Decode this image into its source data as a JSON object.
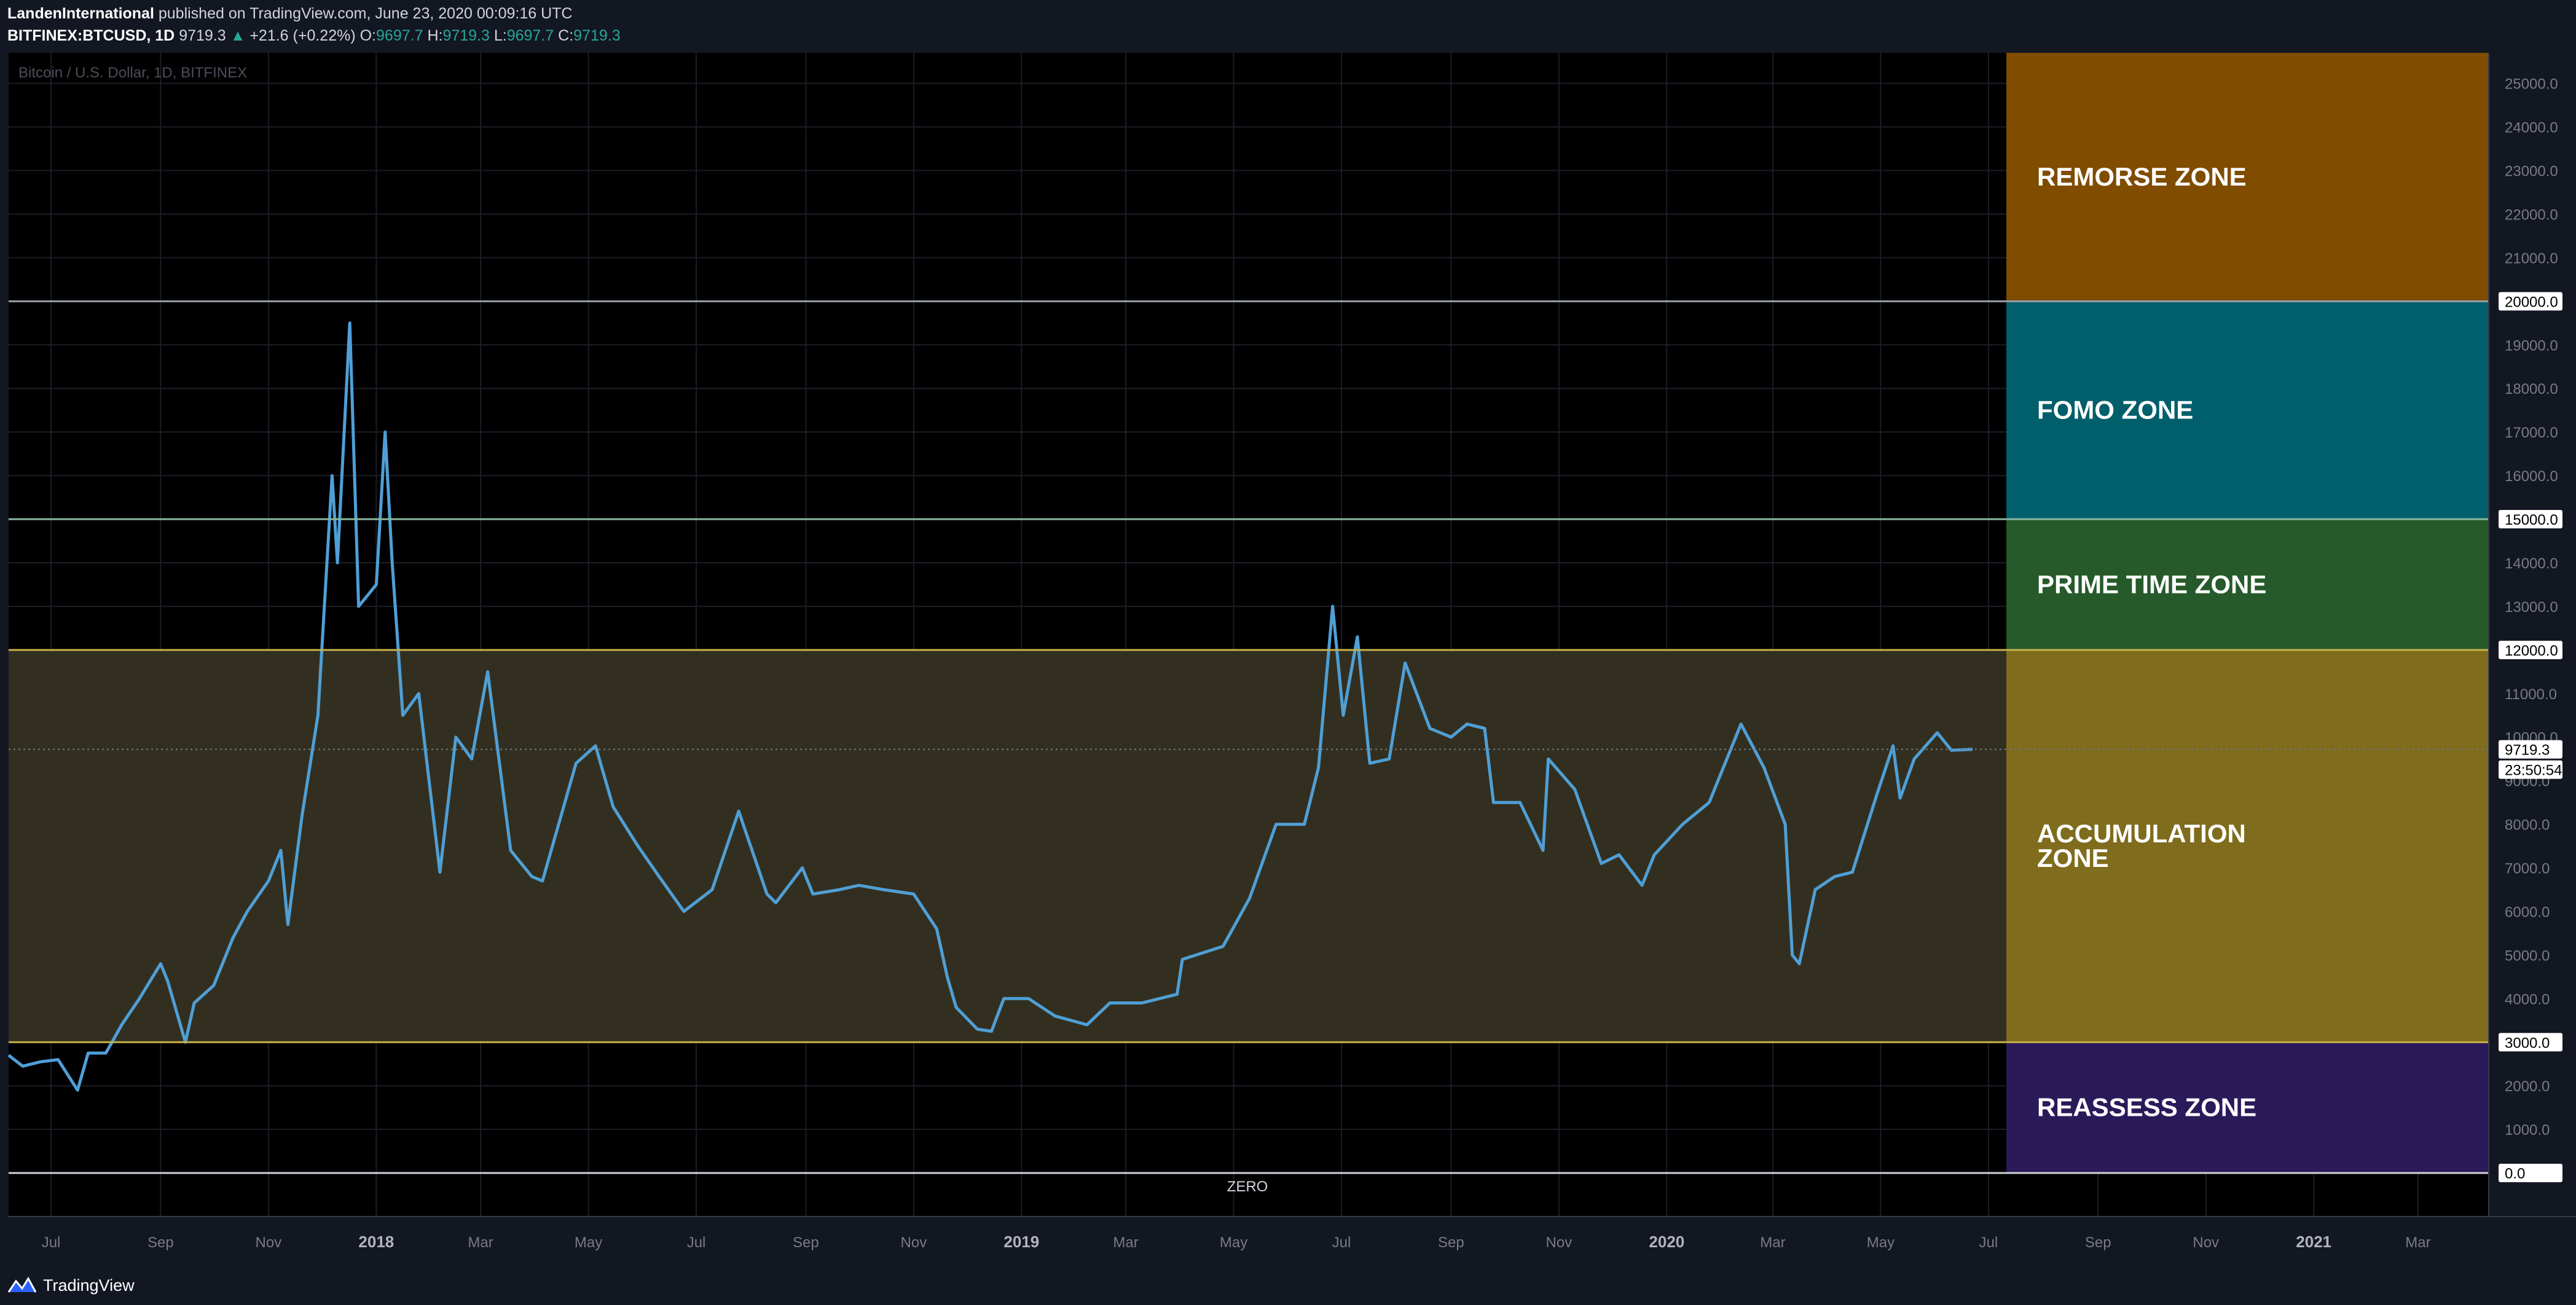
{
  "header": {
    "publisher": "LandenInternational",
    "published_text": "published on TradingView.com, June 23, 2020 00:09:16 UTC",
    "symbol": "BITFINEX:BTCUSD, 1D",
    "last": "9719.3",
    "change": "+21.6 (+0.22%)",
    "o_label": "O:",
    "o_value": "9697.7",
    "h_label": "H:",
    "h_value": "9719.3",
    "l_label": "L:",
    "l_value": "9697.7",
    "c_label": "C:",
    "c_value": "9719.3"
  },
  "footer": {
    "brand": "TradingView",
    "logo_icon": "tradingview-logo-icon"
  },
  "colors": {
    "background": "#000000",
    "price_line": "#4f9fd6",
    "remorse": "#7f4c00",
    "fomo": "#005f6b",
    "prime": "#265a2a",
    "accumulation": "#7f6c1c",
    "accumulation_band": "#332f20",
    "reassess": "#2b1a5a"
  },
  "chart_data": {
    "type": "line",
    "title": "Bitcoin / U.S. Dollar, 1D, BITFINEX",
    "ylim": [
      -1000,
      25700
    ],
    "grid": true,
    "y_ticks": [
      "0.0",
      "1000.0",
      "2000.0",
      "3000.0",
      "4000.0",
      "5000.0",
      "6000.0",
      "7000.0",
      "8000.0",
      "9000.0",
      "10000.0",
      "11000.0",
      "12000.0",
      "13000.0",
      "14000.0",
      "15000.0",
      "16000.0",
      "17000.0",
      "18000.0",
      "19000.0",
      "20000.0",
      "21000.0",
      "22000.0",
      "23000.0",
      "24000.0",
      "25000.0"
    ],
    "highlighted_levels": [
      "0.0",
      "3000.0",
      "12000.0",
      "15000.0",
      "20000.0"
    ],
    "last_price_label": "9719.3",
    "countdown_label": "23:50:54",
    "x_labels": [
      {
        "label": "Jul",
        "date": "2017-07-01",
        "bold": false
      },
      {
        "label": "Sep",
        "date": "2017-09-01",
        "bold": false
      },
      {
        "label": "Nov",
        "date": "2017-11-01",
        "bold": false
      },
      {
        "label": "2018",
        "date": "2018-01-01",
        "bold": true
      },
      {
        "label": "Mar",
        "date": "2018-03-01",
        "bold": false
      },
      {
        "label": "May",
        "date": "2018-05-01",
        "bold": false
      },
      {
        "label": "Jul",
        "date": "2018-07-01",
        "bold": false
      },
      {
        "label": "Sep",
        "date": "2018-09-01",
        "bold": false
      },
      {
        "label": "Nov",
        "date": "2018-11-01",
        "bold": false
      },
      {
        "label": "2019",
        "date": "2019-01-01",
        "bold": true
      },
      {
        "label": "Mar",
        "date": "2019-03-01",
        "bold": false
      },
      {
        "label": "May",
        "date": "2019-05-01",
        "bold": false
      },
      {
        "label": "Jul",
        "date": "2019-07-01",
        "bold": false
      },
      {
        "label": "Sep",
        "date": "2019-09-01",
        "bold": false
      },
      {
        "label": "Nov",
        "date": "2019-11-01",
        "bold": false
      },
      {
        "label": "2020",
        "date": "2020-01-01",
        "bold": true
      },
      {
        "label": "Mar",
        "date": "2020-03-01",
        "bold": false
      },
      {
        "label": "May",
        "date": "2020-05-01",
        "bold": false
      },
      {
        "label": "Jul",
        "date": "2020-07-01",
        "bold": false
      },
      {
        "label": "Sep",
        "date": "2020-09-01",
        "bold": false
      },
      {
        "label": "Nov",
        "date": "2020-11-01",
        "bold": false
      },
      {
        "label": "2021",
        "date": "2021-01-01",
        "bold": true
      },
      {
        "label": "Mar",
        "date": "2021-03-01",
        "bold": false
      }
    ],
    "xlim": [
      "2017-06-07",
      "2021-04-10"
    ],
    "zones": [
      {
        "name": "REMORSE ZONE",
        "from": 20000,
        "to": 25700,
        "color": "#7f4c00"
      },
      {
        "name": "FOMO ZONE",
        "from": 15000,
        "to": 20000,
        "color": "#005f6b"
      },
      {
        "name": "PRIME TIME ZONE",
        "from": 12000,
        "to": 15000,
        "color": "#265a2a"
      },
      {
        "name": "ACCUMULATION ZONE",
        "from": 3000,
        "to": 12000,
        "color": "#7f6c1c"
      },
      {
        "name": "REASSESS ZONE",
        "from": 0,
        "to": 3000,
        "color": "#2b1a5a"
      }
    ],
    "zone_label_lines": {
      "REMORSE ZONE": [
        "REMORSE ZONE"
      ],
      "FOMO ZONE": [
        "FOMO ZONE"
      ],
      "PRIME TIME ZONE": [
        "PRIME TIME ZONE"
      ],
      "ACCUMULATION ZONE": [
        "ACCUMULATION",
        "ZONE"
      ],
      "REASSESS ZONE": [
        "REASSESS ZONE"
      ]
    },
    "annotation": "ZERO",
    "series": [
      {
        "values": [
          [
            "2017-06-07",
            2700
          ],
          [
            "2017-06-15",
            2450
          ],
          [
            "2017-06-25",
            2550
          ],
          [
            "2017-07-05",
            2600
          ],
          [
            "2017-07-16",
            1900
          ],
          [
            "2017-07-22",
            2750
          ],
          [
            "2017-08-01",
            2750
          ],
          [
            "2017-08-10",
            3400
          ],
          [
            "2017-08-20",
            4000
          ],
          [
            "2017-09-01",
            4800
          ],
          [
            "2017-09-05",
            4400
          ],
          [
            "2017-09-15",
            3000
          ],
          [
            "2017-09-20",
            3900
          ],
          [
            "2017-10-01",
            4300
          ],
          [
            "2017-10-12",
            5400
          ],
          [
            "2017-10-20",
            6000
          ],
          [
            "2017-11-01",
            6700
          ],
          [
            "2017-11-08",
            7400
          ],
          [
            "2017-11-12",
            5700
          ],
          [
            "2017-11-20",
            8200
          ],
          [
            "2017-11-29",
            10500
          ],
          [
            "2017-12-07",
            16000
          ],
          [
            "2017-12-10",
            14000
          ],
          [
            "2017-12-17",
            19500
          ],
          [
            "2017-12-22",
            13000
          ],
          [
            "2018-01-01",
            13500
          ],
          [
            "2018-01-06",
            17000
          ],
          [
            "2018-01-10",
            14000
          ],
          [
            "2018-01-16",
            10500
          ],
          [
            "2018-01-25",
            11000
          ],
          [
            "2018-02-06",
            6900
          ],
          [
            "2018-02-15",
            10000
          ],
          [
            "2018-02-24",
            9500
          ],
          [
            "2018-03-05",
            11500
          ],
          [
            "2018-03-18",
            7400
          ],
          [
            "2018-03-30",
            6800
          ],
          [
            "2018-04-05",
            6700
          ],
          [
            "2018-04-24",
            9400
          ],
          [
            "2018-05-05",
            9800
          ],
          [
            "2018-05-15",
            8400
          ],
          [
            "2018-05-29",
            7500
          ],
          [
            "2018-06-10",
            6800
          ],
          [
            "2018-06-24",
            6000
          ],
          [
            "2018-07-10",
            6500
          ],
          [
            "2018-07-25",
            8300
          ],
          [
            "2018-08-10",
            6400
          ],
          [
            "2018-08-15",
            6200
          ],
          [
            "2018-08-30",
            7000
          ],
          [
            "2018-09-05",
            6400
          ],
          [
            "2018-09-20",
            6500
          ],
          [
            "2018-10-01",
            6600
          ],
          [
            "2018-10-15",
            6500
          ],
          [
            "2018-11-01",
            6400
          ],
          [
            "2018-11-14",
            5600
          ],
          [
            "2018-11-20",
            4500
          ],
          [
            "2018-11-25",
            3800
          ],
          [
            "2018-12-07",
            3300
          ],
          [
            "2018-12-15",
            3250
          ],
          [
            "2018-12-22",
            4000
          ],
          [
            "2019-01-05",
            4000
          ],
          [
            "2019-01-20",
            3600
          ],
          [
            "2019-02-07",
            3400
          ],
          [
            "2019-02-20",
            3900
          ],
          [
            "2019-03-10",
            3900
          ],
          [
            "2019-03-30",
            4100
          ],
          [
            "2019-04-02",
            4900
          ],
          [
            "2019-04-25",
            5200
          ],
          [
            "2019-05-10",
            6300
          ],
          [
            "2019-05-25",
            8000
          ],
          [
            "2019-06-10",
            8000
          ],
          [
            "2019-06-18",
            9300
          ],
          [
            "2019-06-26",
            13000
          ],
          [
            "2019-07-02",
            10500
          ],
          [
            "2019-07-10",
            12300
          ],
          [
            "2019-07-17",
            9400
          ],
          [
            "2019-07-28",
            9500
          ],
          [
            "2019-08-06",
            11700
          ],
          [
            "2019-08-20",
            10200
          ],
          [
            "2019-09-01",
            10000
          ],
          [
            "2019-09-10",
            10300
          ],
          [
            "2019-09-20",
            10200
          ],
          [
            "2019-09-25",
            8500
          ],
          [
            "2019-10-10",
            8500
          ],
          [
            "2019-10-23",
            7400
          ],
          [
            "2019-10-26",
            9500
          ],
          [
            "2019-11-10",
            8800
          ],
          [
            "2019-11-25",
            7100
          ],
          [
            "2019-12-05",
            7300
          ],
          [
            "2019-12-18",
            6600
          ],
          [
            "2019-12-25",
            7300
          ],
          [
            "2020-01-10",
            8000
          ],
          [
            "2020-01-25",
            8500
          ],
          [
            "2020-02-12",
            10300
          ],
          [
            "2020-02-25",
            9300
          ],
          [
            "2020-03-08",
            8000
          ],
          [
            "2020-03-12",
            5000
          ],
          [
            "2020-03-16",
            4800
          ],
          [
            "2020-03-25",
            6500
          ],
          [
            "2020-04-05",
            6800
          ],
          [
            "2020-04-15",
            6900
          ],
          [
            "2020-04-29",
            8700
          ],
          [
            "2020-05-08",
            9800
          ],
          [
            "2020-05-12",
            8600
          ],
          [
            "2020-05-20",
            9500
          ],
          [
            "2020-06-02",
            10100
          ],
          [
            "2020-06-10",
            9700
          ],
          [
            "2020-06-22",
            9719
          ]
        ]
      }
    ]
  }
}
